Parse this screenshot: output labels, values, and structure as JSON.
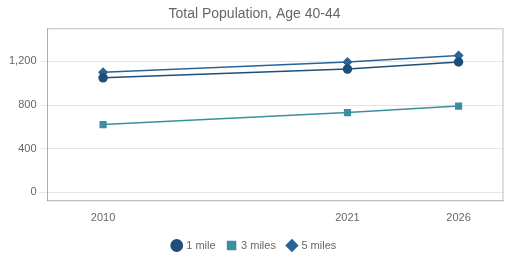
{
  "chart_data": {
    "type": "line",
    "title": "Total Population, Age 40-44",
    "x": [
      2010,
      2021,
      2026
    ],
    "xlim": [
      2007.5,
      2028
    ],
    "xticks": [
      2010,
      2021,
      2026
    ],
    "series": [
      {
        "name": "1 mile",
        "color": "#1f4e79",
        "marker": "circle",
        "values": [
          1050,
          1130,
          1195
        ]
      },
      {
        "name": "3 miles",
        "color": "#3a8fa0",
        "marker": "square",
        "values": [
          620,
          730,
          790
        ]
      },
      {
        "name": "5 miles",
        "color": "#2a6496",
        "marker": "diamond",
        "values": [
          1100,
          1195,
          1255
        ]
      }
    ],
    "ylim": [
      -80,
      1500
    ],
    "yticks": [
      0,
      400,
      800,
      {
        "value": 1200,
        "label": "1,200"
      }
    ],
    "grid": "y",
    "legend": "bottom"
  }
}
